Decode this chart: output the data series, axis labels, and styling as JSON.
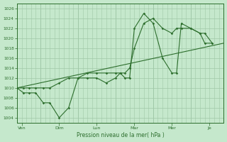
{
  "background_color": "#c5e8cc",
  "grid_color": "#a0c8a8",
  "line_color": "#2d6e2d",
  "xlabel_text": "Pression niveau de la mer( hPa )",
  "ylim": [
    1003,
    1027
  ],
  "ytick_vals": [
    1004,
    1006,
    1008,
    1010,
    1012,
    1014,
    1016,
    1018,
    1020,
    1022,
    1024,
    1026
  ],
  "x_day_positions": [
    0.5,
    4.5,
    8.5,
    12.5,
    16.5,
    20.5
  ],
  "x_day_labels": [
    "Ven",
    "Dim",
    "Lun",
    "Mar",
    "Mer",
    "Je"
  ],
  "x_vline_positions": [
    2.5,
    6.5,
    10.5,
    14.5,
    18.5
  ],
  "xlim": [
    0,
    22
  ],
  "trend_x": [
    0,
    22
  ],
  "trend_y": [
    1010,
    1019
  ],
  "line_detail_x": [
    0.0,
    0.7,
    1.3,
    2.0,
    2.8,
    3.5,
    4.5,
    5.5,
    6.5,
    7.5,
    8.5,
    9.5,
    10.5,
    11.0,
    11.5,
    12.0,
    12.5,
    13.5,
    14.5,
    15.5,
    16.5,
    17.0,
    17.5,
    18.5,
    19.5,
    20.0,
    20.8
  ],
  "line_detail_y": [
    1010,
    1009,
    1009,
    1009,
    1007,
    1007,
    1004,
    1006,
    1012,
    1012,
    1012,
    1011,
    1012,
    1013,
    1012,
    1012,
    1022,
    1025,
    1023,
    1016,
    1013,
    1013,
    1023,
    1022,
    1021,
    1019,
    1019
  ],
  "line_smooth_x": [
    0.0,
    0.7,
    1.3,
    2.0,
    2.8,
    3.5,
    4.5,
    5.5,
    6.5,
    7.5,
    8.5,
    9.5,
    10.5,
    11.0,
    11.5,
    12.0,
    12.5,
    13.5,
    14.5,
    15.5,
    16.5,
    17.0,
    17.5,
    18.5,
    19.5,
    20.0,
    20.8
  ],
  "line_smooth_y": [
    1010,
    1010,
    1010,
    1010,
    1010,
    1010,
    1011,
    1012,
    1012,
    1013,
    1013,
    1013,
    1013,
    1013,
    1013,
    1014,
    1018,
    1023,
    1024,
    1022,
    1021,
    1022,
    1022,
    1022,
    1021,
    1021,
    1019
  ]
}
